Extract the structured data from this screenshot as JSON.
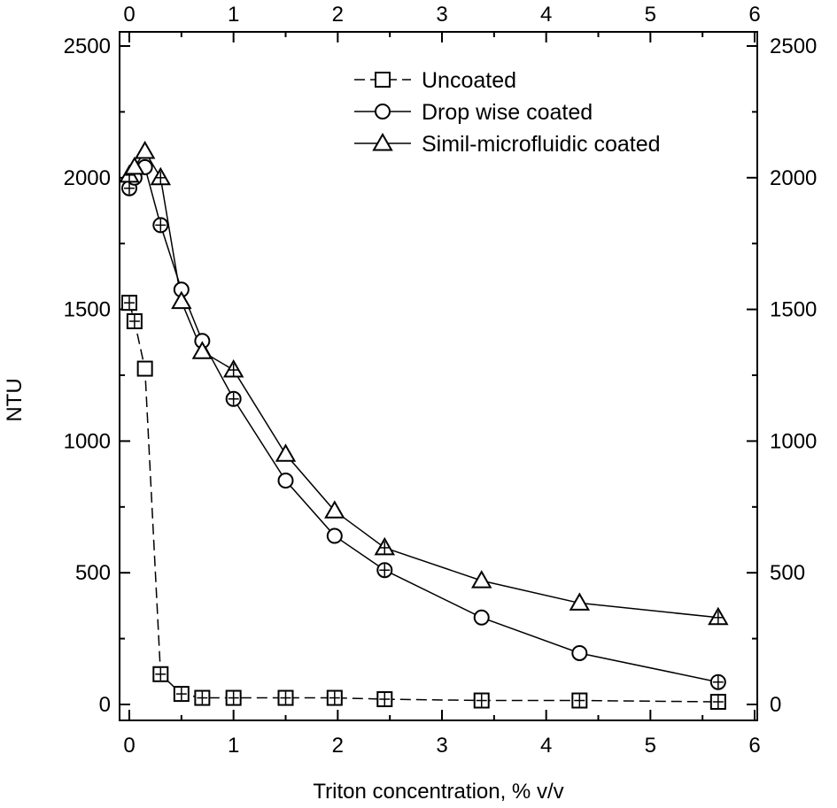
{
  "chart_data": {
    "type": "scatter",
    "xlabel": "Triton concentration, % v/v",
    "ylabel": "NTU",
    "xlim": [
      -0.1,
      6
    ],
    "ylim": [
      -50,
      2500
    ],
    "x_ticks": [
      0,
      1,
      2,
      3,
      4,
      5,
      6
    ],
    "y_ticks": [
      0,
      500,
      1000,
      1500,
      2000,
      2500
    ],
    "x_tick_labels": [
      "0",
      "1",
      "2",
      "3",
      "4",
      "5",
      "6"
    ],
    "y_tick_labels": [
      "0",
      "500",
      "1000",
      "1500",
      "2000",
      "2500"
    ],
    "legend_position": "top-center",
    "grid": false,
    "series": [
      {
        "name": "Uncoated",
        "marker": "square",
        "line_style": "dashed",
        "x": [
          0,
          0.05,
          0.15,
          0.3,
          0.5,
          0.7,
          1.0,
          1.5,
          1.97,
          2.45,
          3.38,
          4.32,
          5.65
        ],
        "y": [
          1525,
          1455,
          1275,
          115,
          40,
          25,
          25,
          25,
          25,
          20,
          15,
          15,
          10
        ]
      },
      {
        "name": "Drop wise coated",
        "marker": "circle",
        "line_style": "solid",
        "x": [
          0,
          0.05,
          0.15,
          0.3,
          0.5,
          0.7,
          1.0,
          1.5,
          1.97,
          2.45,
          3.38,
          4.32,
          5.65
        ],
        "y": [
          1960,
          2000,
          2040,
          1820,
          1575,
          1380,
          1160,
          850,
          640,
          510,
          330,
          195,
          85
        ]
      },
      {
        "name": "Simil-microfluidic coated",
        "marker": "triangle",
        "line_style": "solid",
        "x": [
          0,
          0.05,
          0.15,
          0.3,
          0.5,
          0.7,
          1.0,
          1.5,
          1.97,
          2.45,
          3.38,
          4.32,
          5.65
        ],
        "y": [
          2010,
          2040,
          2100,
          2000,
          1530,
          1340,
          1270,
          950,
          735,
          595,
          470,
          385,
          330
        ]
      }
    ]
  }
}
